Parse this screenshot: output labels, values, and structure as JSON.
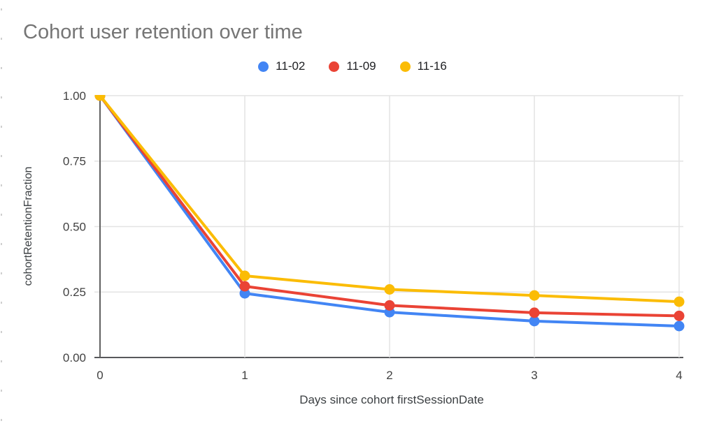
{
  "page": {
    "background_color": "#ffffff"
  },
  "chart_data": {
    "type": "line",
    "title": "Cohort user retention over time",
    "title_color": "#757575",
    "xlabel": "Days since cohort firstSessionDate",
    "ylabel": "cohortRetentionFraction",
    "x": [
      0,
      1,
      2,
      3,
      4
    ],
    "x_ticks": [
      "0",
      "1",
      "2",
      "3",
      "4"
    ],
    "y_ticks": [
      "0.00",
      "0.25",
      "0.50",
      "0.75",
      "1.00"
    ],
    "xlim": [
      0,
      4
    ],
    "ylim": [
      0,
      1
    ],
    "grid": true,
    "legend_position": "top",
    "series": [
      {
        "name": "11-02",
        "color": "#4285F4",
        "values": [
          1.0,
          0.245,
          0.173,
          0.139,
          0.12
        ]
      },
      {
        "name": "11-09",
        "color": "#EA4335",
        "values": [
          1.0,
          0.272,
          0.199,
          0.171,
          0.159
        ]
      },
      {
        "name": "11-16",
        "color": "#FBBC04",
        "values": [
          1.0,
          0.312,
          0.26,
          0.237,
          0.213
        ]
      }
    ]
  }
}
